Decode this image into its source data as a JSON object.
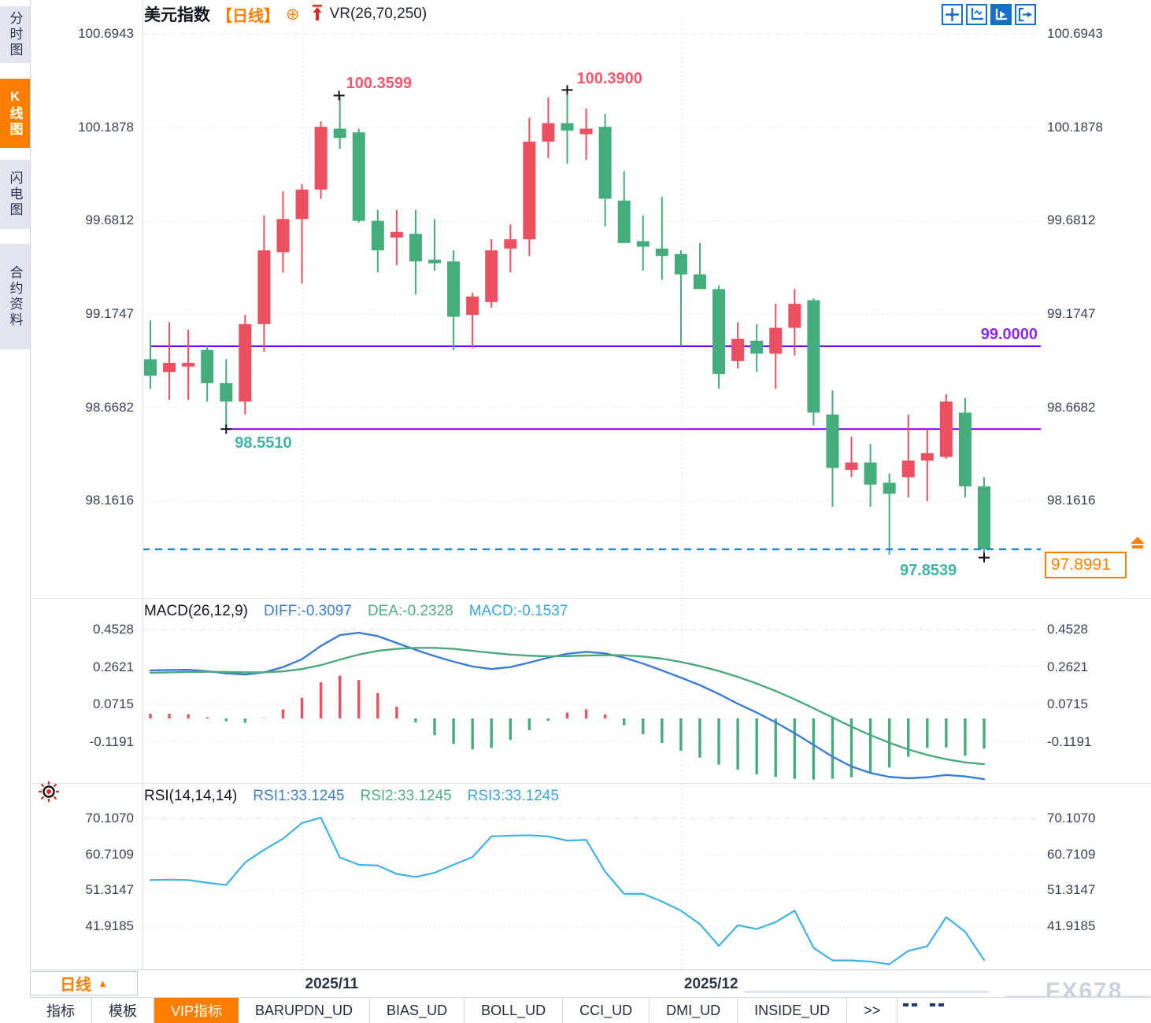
{
  "sidebar": {
    "items": [
      {
        "label": "分时图",
        "active": false
      },
      {
        "label": "K线图",
        "active": true
      },
      {
        "label": "闪电图",
        "active": false
      },
      {
        "label": "合约资料",
        "active": false
      }
    ]
  },
  "header": {
    "symbol": "美元指数",
    "period_tag": "【日线】",
    "plus_icon": "⊕",
    "indicator": "VR(26,70,250)"
  },
  "toolbar": {
    "icons": [
      "move-crosshair",
      "axis-range",
      "axis-play",
      "pane-next"
    ]
  },
  "macd_panel": {
    "title": "MACD(26,12,9)",
    "diff_label": "DIFF:-0.3097",
    "dea_label": "DEA:-0.2328",
    "macd_label": "MACD:-0.1537",
    "y_ticks": [
      "0.4528",
      "0.2621",
      "0.0715",
      "-0.1191"
    ]
  },
  "rsi_panel": {
    "title": "RSI(14,14,14)",
    "rsi1_label": "RSI1:33.1245",
    "rsi2_label": "RSI2:33.1245",
    "rsi3_label": "RSI3:33.1245",
    "y_ticks": [
      "70.1070",
      "60.7109",
      "51.3147",
      "41.9185"
    ]
  },
  "bottom": {
    "period_selector": "日线",
    "period_arrow": "▲",
    "tabs": [
      {
        "label": "指标",
        "active": false
      },
      {
        "label": "模板",
        "active": false
      },
      {
        "label": "VIP指标",
        "active": true
      },
      {
        "label": "BARUPDN_UD",
        "active": false
      },
      {
        "label": "BIAS_UD",
        "active": false
      },
      {
        "label": "BOLL_UD",
        "active": false
      },
      {
        "label": "CCI_UD",
        "active": false
      },
      {
        "label": "DMI_UD",
        "active": false
      },
      {
        "label": "INSIDE_UD",
        "active": false
      },
      {
        "label": ">>",
        "active": false
      }
    ],
    "watermark": "FX678"
  },
  "colors": {
    "up": "#ec4f5f",
    "down": "#45ac7c",
    "diff_line": "#3a7dd2",
    "dea_line": "#4ca87e",
    "rsi_line": "#41b1e1",
    "level_purple": "#7b00f0",
    "current_dash": "#2080e0",
    "accent_orange": "#ff7e00"
  },
  "chart_data": {
    "type": "candlestick",
    "title": "美元指数 日线",
    "main_y_ticks": [
      "100.6943",
      "100.1878",
      "99.6812",
      "99.1747",
      "98.6682",
      "98.1616"
    ],
    "candles": [
      [
        98.93,
        99.14,
        98.77,
        98.84
      ],
      [
        98.86,
        99.13,
        98.71,
        98.91
      ],
      [
        98.89,
        99.09,
        98.71,
        98.91
      ],
      [
        98.98,
        99.0,
        98.7,
        98.8
      ],
      [
        98.8,
        98.93,
        98.551,
        98.7
      ],
      [
        98.7,
        99.17,
        98.63,
        99.12
      ],
      [
        99.12,
        99.71,
        98.97,
        99.52
      ],
      [
        99.51,
        99.84,
        99.4,
        99.69
      ],
      [
        99.69,
        99.88,
        99.34,
        99.85
      ],
      [
        99.85,
        100.22,
        99.8,
        100.19
      ],
      [
        100.18,
        100.3599,
        100.07,
        100.13
      ],
      [
        100.16,
        100.18,
        99.67,
        99.68
      ],
      [
        99.68,
        99.74,
        99.4,
        99.52
      ],
      [
        99.59,
        99.74,
        99.44,
        99.62
      ],
      [
        99.61,
        99.74,
        99.28,
        99.46
      ],
      [
        99.47,
        99.69,
        99.41,
        99.45
      ],
      [
        99.46,
        99.52,
        98.98,
        99.16
      ],
      [
        99.17,
        99.29,
        98.99,
        99.27
      ],
      [
        99.24,
        99.58,
        99.21,
        99.52
      ],
      [
        99.53,
        99.66,
        99.4,
        99.58
      ],
      [
        99.58,
        100.24,
        99.49,
        100.11
      ],
      [
        100.11,
        100.35,
        100.02,
        100.21
      ],
      [
        100.21,
        100.39,
        99.99,
        100.17
      ],
      [
        100.15,
        100.29,
        100.01,
        100.18
      ],
      [
        100.19,
        100.26,
        99.65,
        99.8
      ],
      [
        99.79,
        99.95,
        99.56,
        99.56
      ],
      [
        99.57,
        99.71,
        99.41,
        99.54
      ],
      [
        99.53,
        99.81,
        99.36,
        99.49
      ],
      [
        99.5,
        99.52,
        99.0,
        99.39
      ],
      [
        99.39,
        99.56,
        99.31,
        99.31
      ],
      [
        99.31,
        99.33,
        98.77,
        98.85
      ],
      [
        98.92,
        99.13,
        98.88,
        99.04
      ],
      [
        99.03,
        99.12,
        98.86,
        98.96
      ],
      [
        98.96,
        99.23,
        98.77,
        99.1
      ],
      [
        99.1,
        99.31,
        98.95,
        99.23
      ],
      [
        99.25,
        99.26,
        98.57,
        98.64
      ],
      [
        98.63,
        98.76,
        98.13,
        98.34
      ],
      [
        98.33,
        98.51,
        98.29,
        98.37
      ],
      [
        98.37,
        98.47,
        98.13,
        98.25
      ],
      [
        98.26,
        98.31,
        97.87,
        98.2
      ],
      [
        98.29,
        98.63,
        98.18,
        98.38
      ],
      [
        98.38,
        98.55,
        98.16,
        98.42
      ],
      [
        98.4,
        98.74,
        98.39,
        98.7
      ],
      [
        98.64,
        98.72,
        98.18,
        98.24
      ],
      [
        98.24,
        98.29,
        97.8539,
        97.8991
      ]
    ],
    "markers": [
      {
        "candle_index": 5,
        "at": "low",
        "label": "98.5510",
        "color": "teal"
      },
      {
        "candle_index": 11,
        "at": "high",
        "label": "100.3599",
        "color": "red"
      },
      {
        "candle_index": 23,
        "at": "high",
        "label": "100.3900",
        "color": "red"
      },
      {
        "candle_index": 45,
        "at": "low",
        "label": "97.8539",
        "color": "teal"
      }
    ],
    "levels": [
      {
        "value": 99.0,
        "label": "99.0000",
        "from_candle": 1
      },
      {
        "value": 98.551,
        "label": null,
        "from_candle": 5
      }
    ],
    "current_price": {
      "value": 97.8991,
      "label": "97.8991"
    },
    "month_markers": [
      {
        "label": "2025/11",
        "candle_index": 9
      },
      {
        "label": "2025/12",
        "candle_index": 29
      }
    ],
    "macd": {
      "diff": [
        0.245,
        0.247,
        0.248,
        0.241,
        0.23,
        0.224,
        0.235,
        0.262,
        0.302,
        0.37,
        0.425,
        0.437,
        0.42,
        0.385,
        0.35,
        0.318,
        0.29,
        0.265,
        0.252,
        0.262,
        0.285,
        0.31,
        0.33,
        0.34,
        0.332,
        0.31,
        0.28,
        0.245,
        0.208,
        0.17,
        0.125,
        0.075,
        0.03,
        -0.02,
        -0.075,
        -0.135,
        -0.195,
        -0.245,
        -0.278,
        -0.298,
        -0.305,
        -0.3,
        -0.288,
        -0.295,
        -0.3097
      ],
      "dea": [
        0.233,
        0.235,
        0.237,
        0.238,
        0.237,
        0.235,
        0.235,
        0.24,
        0.252,
        0.272,
        0.3,
        0.326,
        0.345,
        0.355,
        0.36,
        0.36,
        0.355,
        0.345,
        0.335,
        0.326,
        0.32,
        0.317,
        0.318,
        0.321,
        0.323,
        0.322,
        0.316,
        0.305,
        0.288,
        0.267,
        0.242,
        0.212,
        0.178,
        0.14,
        0.098,
        0.052,
        0.005,
        -0.042,
        -0.085,
        -0.124,
        -0.158,
        -0.186,
        -0.208,
        -0.224,
        -0.2328
      ],
      "hist": [
        0.024,
        0.024,
        0.022,
        0.006,
        -0.014,
        -0.022,
        0.002,
        0.046,
        0.105,
        0.185,
        0.218,
        0.196,
        0.13,
        0.06,
        -0.02,
        -0.085,
        -0.13,
        -0.158,
        -0.15,
        -0.11,
        -0.06,
        -0.012,
        0.03,
        0.046,
        0.02,
        -0.035,
        -0.08,
        -0.125,
        -0.165,
        -0.2,
        -0.235,
        -0.262,
        -0.285,
        -0.298,
        -0.308,
        -0.312,
        -0.308,
        -0.3,
        -0.282,
        -0.25,
        -0.195,
        -0.15,
        -0.148,
        -0.19,
        -0.1537
      ]
    },
    "rsi": {
      "rsi1": [
        54.0,
        54.1,
        54.0,
        53.3,
        52.7,
        58.6,
        61.9,
        64.8,
        68.9,
        70.3,
        59.9,
        58.0,
        57.8,
        55.6,
        54.8,
        55.9,
        58.0,
        60.0,
        65.4,
        65.6,
        65.7,
        65.4,
        64.3,
        64.5,
        56.2,
        50.4,
        50.4,
        48.4,
        46.0,
        42.5,
        36.8,
        42.2,
        41.2,
        43.0,
        46.0,
        36.3,
        33.0,
        33.0,
        32.7,
        32.0,
        35.5,
        36.7,
        44.3,
        40.5,
        33.1245
      ]
    }
  }
}
